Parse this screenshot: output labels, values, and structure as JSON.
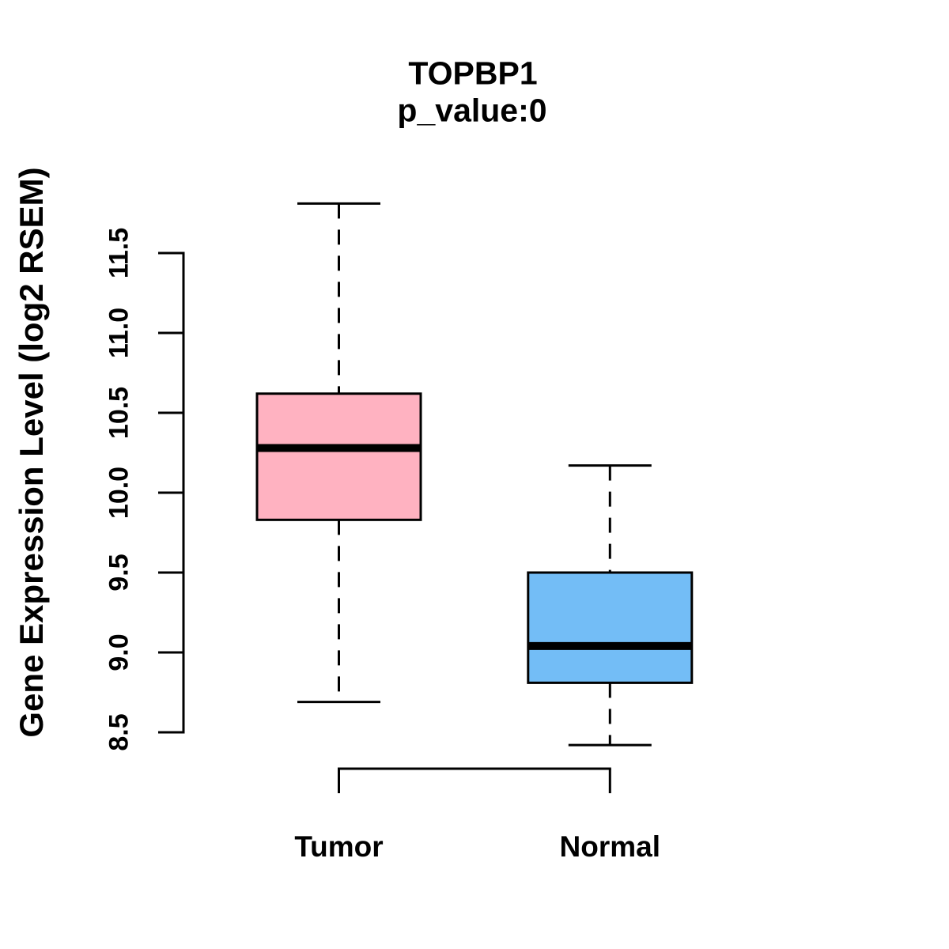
{
  "chart_data": {
    "type": "box",
    "title": "TOPBP1",
    "subtitle": "p_value:0",
    "ylabel": "Gene Expression Level (log2 RSEM)",
    "ylim": [
      8.5,
      11.5
    ],
    "yticks": [
      8.5,
      9.0,
      9.5,
      10.0,
      10.5,
      11.0,
      11.5
    ],
    "ytick_labels": [
      "8.5",
      "9.0",
      "9.5",
      "10.0",
      "10.5",
      "11.0",
      "11.5"
    ],
    "grid": false,
    "legend": "none",
    "background_color": "#FFFFFF",
    "box_border_color": "#000000",
    "groups": [
      {
        "label": "Tumor",
        "color": "#FFB2C1",
        "whisker_low": 8.69,
        "q1": 9.83,
        "median": 10.28,
        "q3": 10.62,
        "whisker_high": 11.81
      },
      {
        "label": "Normal",
        "color": "#73BDF6",
        "whisker_low": 8.42,
        "q1": 8.81,
        "median": 9.04,
        "q3": 9.5,
        "whisker_high": 10.17
      }
    ]
  }
}
